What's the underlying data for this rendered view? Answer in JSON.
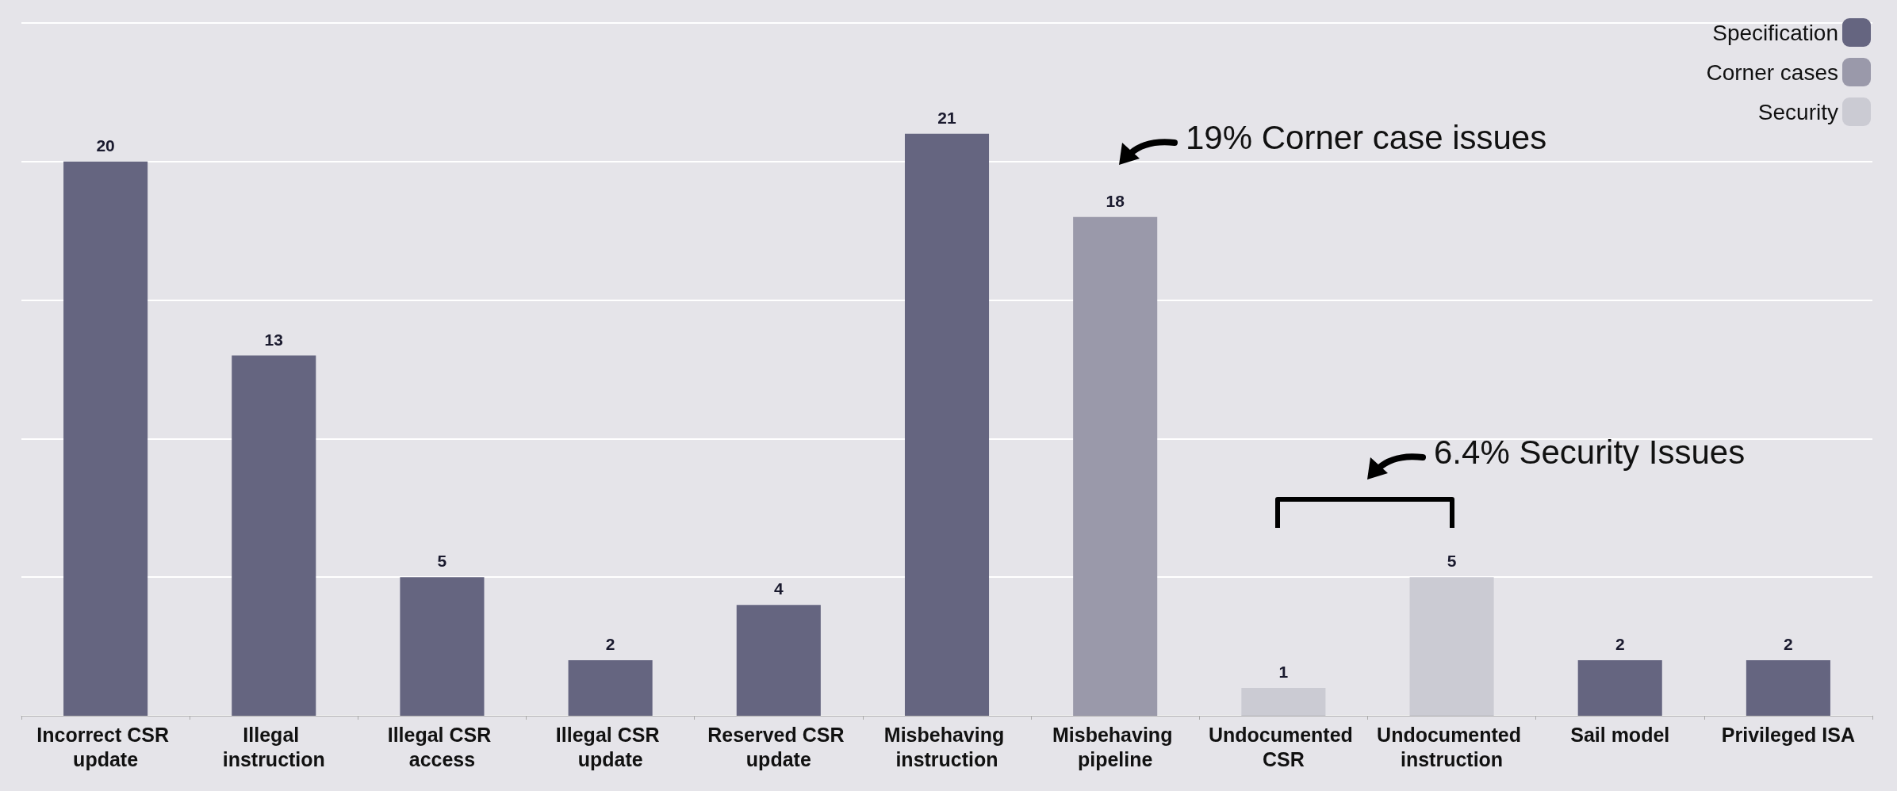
{
  "chart_data": {
    "type": "bar",
    "categories": [
      "Incorrect CSR update",
      "Illegal instruction",
      "Illegal CSR access",
      "Illegal CSR update",
      "Reserved CSR update",
      "Misbehaving instruction",
      "Misbehaving pipeline",
      "Undocumented CSR",
      "Undocumented instruction",
      "Sail model",
      "Privileged ISA"
    ],
    "series": [
      {
        "name": "Specification",
        "color": "#656580",
        "values": [
          20,
          13,
          5,
          2,
          4,
          21,
          null,
          null,
          null,
          2,
          2
        ]
      },
      {
        "name": "Corner cases",
        "color": "#9a99aa",
        "values": [
          null,
          null,
          null,
          null,
          null,
          null,
          18,
          null,
          null,
          null,
          null
        ]
      },
      {
        "name": "Security",
        "color": "#cbcbd3",
        "values": [
          null,
          null,
          null,
          null,
          null,
          null,
          null,
          1,
          5,
          null,
          null
        ]
      }
    ],
    "stacked": true,
    "ylim": [
      0,
      25
    ],
    "yticks": [
      0,
      5,
      10,
      15,
      20,
      25
    ],
    "tick_labels": "x",
    "grid": "y",
    "legend": "top right",
    "data_labels": true,
    "annotations": [
      "19% Corner case issues",
      "6.4% Security Issues"
    ]
  }
}
